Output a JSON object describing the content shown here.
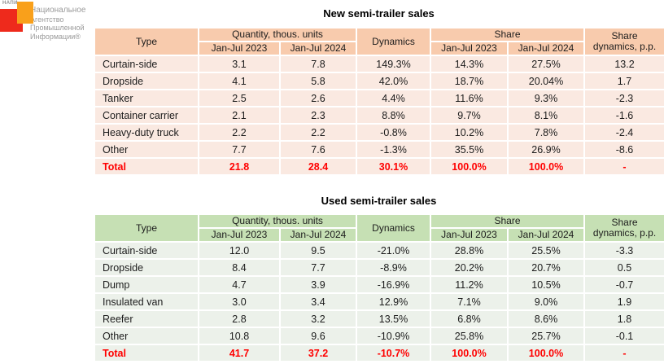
{
  "logo": {
    "brand_small": "НАПИ",
    "lines": [
      "Национальное",
      "Агентство",
      "Промышленной",
      "Информации®"
    ],
    "red": "#EE2A1C",
    "orange": "#F9A01B"
  },
  "columns": {
    "type": "Type",
    "quantity_group": "Quantity, thous. units",
    "dynamics": "Dynamics",
    "share_group": "Share",
    "share_dynamics_line1": "Share",
    "share_dynamics_line2": "dynamics, p.p.",
    "period_2023": "Jan-Jul 2023",
    "period_2024": "Jan-Jul 2024"
  },
  "total_color": "#FF0000",
  "tables": [
    {
      "title": "New semi-trailer sales",
      "theme": {
        "header_bg": "#F8CBAD",
        "row_bg": "#FAE9E1"
      },
      "rows": [
        [
          "Curtain-side",
          "3.1",
          "7.8",
          "149.3%",
          "14.3%",
          "27.5%",
          "13.2"
        ],
        [
          "Dropside",
          "4.1",
          "5.8",
          "42.0%",
          "18.7%",
          "20.04%",
          "1.7"
        ],
        [
          "Tanker",
          "2.5",
          "2.6",
          "4.4%",
          "11.6%",
          "9.3%",
          "-2.3"
        ],
        [
          "Container carrier",
          "2.1",
          "2.3",
          "8.8%",
          "9.7%",
          "8.1%",
          "-1.6"
        ],
        [
          "Heavy-duty truck",
          "2.2",
          "2.2",
          "-0.8%",
          "10.2%",
          "7.8%",
          "-2.4"
        ],
        [
          "Other",
          "7.7",
          "7.6",
          "-1.3%",
          "35.5%",
          "26.9%",
          "-8.6"
        ]
      ],
      "total": [
        "Total",
        "21.8",
        "28.4",
        "30.1%",
        "100.0%",
        "100.0%",
        "-"
      ]
    },
    {
      "title": "Used semi-trailer sales",
      "theme": {
        "header_bg": "#C6E0B4",
        "row_bg": "#ECF1EA"
      },
      "rows": [
        [
          "Curtain-side",
          "12.0",
          "9.5",
          "-21.0%",
          "28.8%",
          "25.5%",
          "-3.3"
        ],
        [
          "Dropside",
          "8.4",
          "7.7",
          "-8.9%",
          "20.2%",
          "20.7%",
          "0.5"
        ],
        [
          "Dump",
          "4.7",
          "3.9",
          "-16.9%",
          "11.2%",
          "10.5%",
          "-0.7"
        ],
        [
          "Insulated van",
          "3.0",
          "3.4",
          "12.9%",
          "7.1%",
          "9.0%",
          "1.9"
        ],
        [
          "Reefer",
          "2.8",
          "3.2",
          "13.5%",
          "6.8%",
          "8.6%",
          "1.8"
        ],
        [
          "Other",
          "10.8",
          "9.6",
          "-10.9%",
          "25.8%",
          "25.7%",
          "-0.1"
        ]
      ],
      "total": [
        "Total",
        "41.7",
        "37.2",
        "-10.7%",
        "100.0%",
        "100.0%",
        "-"
      ]
    }
  ]
}
